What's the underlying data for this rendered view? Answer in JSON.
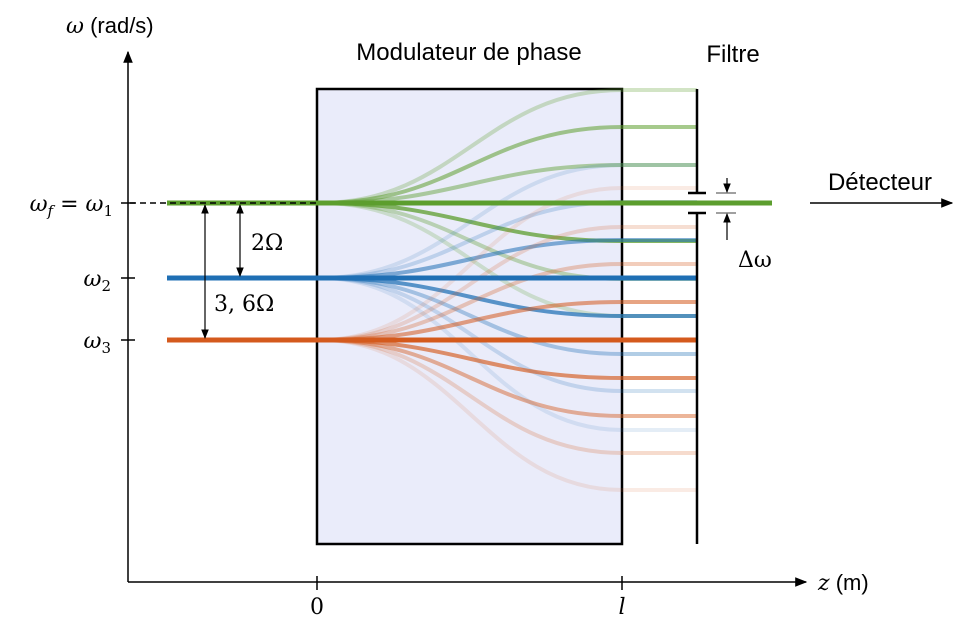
{
  "labels": {
    "y_axis": {
      "sym": "ω",
      "unit": " (rad/s)"
    },
    "x_axis": {
      "sym": "z",
      "unit": " (m)"
    },
    "modulator": "Modulateur de phase",
    "filter": "Filtre",
    "detector": "Détecteur",
    "tick_zero": "0",
    "tick_l": "l",
    "omega_f_eq": {
      "a": "ω",
      "a_sub": "f",
      "eq": " = ",
      "b": "ω",
      "b_sub": "1"
    },
    "omega_2": {
      "sym": "ω",
      "sub": "2"
    },
    "omega_3": {
      "sym": "ω",
      "sub": "3"
    },
    "gap_2": "2Ω",
    "gap_36": "3, 6Ω",
    "delta_omega": "Δω"
  },
  "colors": {
    "green": "#5c9e2e",
    "blue": "#1f6fb4",
    "orange": "#d45a1d",
    "modulator_fill": "#eaecfa",
    "black": "#000000"
  }
}
